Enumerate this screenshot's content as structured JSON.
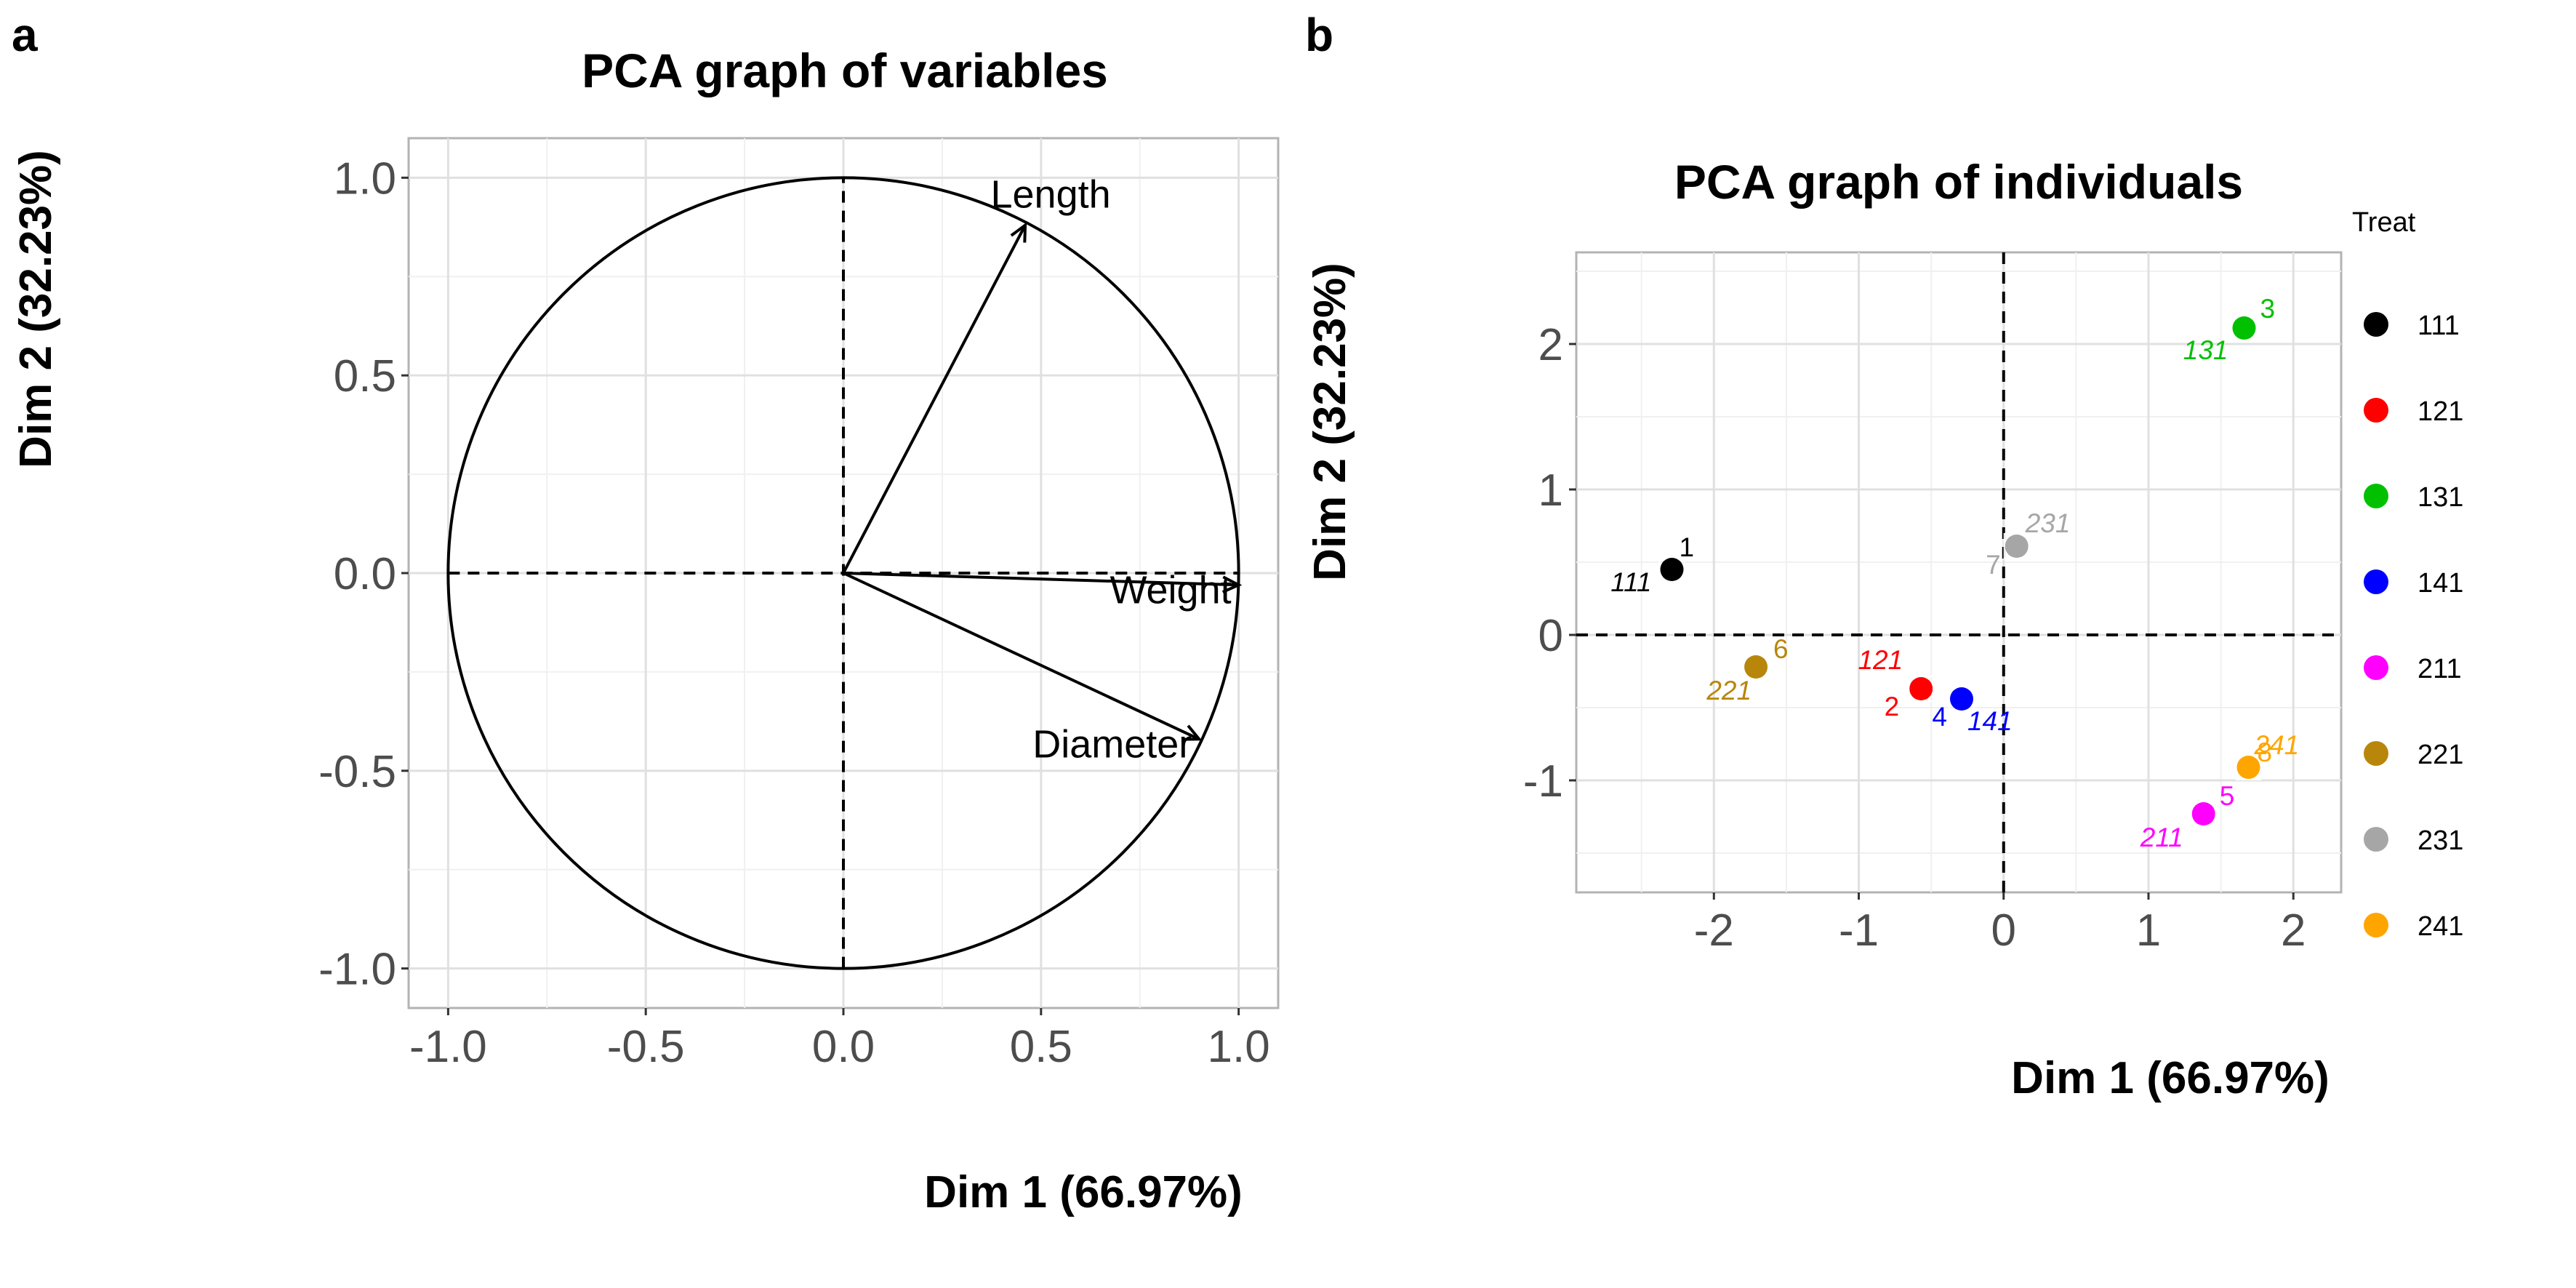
{
  "figure": {
    "panel_a_letter": "a",
    "panel_b_letter": "b"
  },
  "chart_data": [
    {
      "type": "scatter",
      "subtype": "pca-correlation-circle",
      "title": "PCA graph of variables",
      "xlabel": "Dim 1 (66.97%)",
      "ylabel": "Dim 2 (32.23%)",
      "xlim": [
        -1.1,
        1.1
      ],
      "ylim": [
        -1.1,
        1.1
      ],
      "xticks": [
        "-1.0",
        "-0.5",
        "0.0",
        "0.5",
        "1.0"
      ],
      "yticks": [
        "1.0",
        "0.5",
        "0.0",
        "-0.5",
        "-1.0"
      ],
      "grid": true,
      "unit_circle": true,
      "variables": [
        {
          "name": "Length",
          "x": 0.46,
          "y": 0.88
        },
        {
          "name": "Weight",
          "x": 1.0,
          "y": -0.03
        },
        {
          "name": "Diameter",
          "x": 0.9,
          "y": -0.42
        }
      ]
    },
    {
      "type": "scatter",
      "subtype": "pca-individuals",
      "title": "PCA graph of individuals",
      "xlabel": "Dim 1 (66.97%)",
      "ylabel": "Dim 2 (32.23%)",
      "xlim": [
        -2.95,
        2.33
      ],
      "ylim": [
        -1.77,
        2.63
      ],
      "xticks": [
        "-2",
        "-1",
        "0",
        "1",
        "2"
      ],
      "yticks": [
        "2",
        "1",
        "0",
        "-1"
      ],
      "grid": true,
      "legend": {
        "title": "Treat",
        "placement": "right"
      },
      "series": [
        {
          "name": "111",
          "color": "#000000",
          "id": "1",
          "x": -2.29,
          "y": 0.45
        },
        {
          "name": "121",
          "color": "#ff0000",
          "id": "2",
          "x": -0.57,
          "y": -0.37
        },
        {
          "name": "131",
          "color": "#00c000",
          "id": "3",
          "x": 1.66,
          "y": 2.11
        },
        {
          "name": "141",
          "color": "#0000ff",
          "id": "4",
          "x": -0.29,
          "y": -0.44
        },
        {
          "name": "211",
          "color": "#ff00ff",
          "id": "5",
          "x": 1.38,
          "y": -1.23
        },
        {
          "name": "221",
          "color": "#b8860b",
          "id": "6",
          "x": -1.71,
          "y": -0.22
        },
        {
          "name": "231",
          "color": "#a6a6a6",
          "id": "7",
          "x": 0.09,
          "y": 0.61
        },
        {
          "name": "241",
          "color": "#ffa500",
          "id": "8",
          "x": 1.69,
          "y": -0.91
        }
      ]
    }
  ]
}
